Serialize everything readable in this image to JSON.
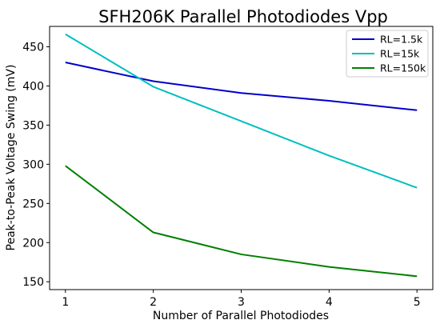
{
  "chart_data": {
    "type": "line",
    "title": "SFH206K Parallel Photodiodes Vpp",
    "xlabel": "Number of Parallel Photodiodes",
    "ylabel": "Peak-to-Peak Voltage Swing (mV)",
    "x": [
      1,
      2,
      3,
      4,
      5
    ],
    "xlim": [
      0.82,
      5.18
    ],
    "ylim": [
      140,
      476
    ],
    "xticks": [
      1,
      2,
      3,
      4,
      5
    ],
    "yticks": [
      150,
      200,
      250,
      300,
      350,
      400,
      450
    ],
    "grid": false,
    "legend_position": "top-right",
    "series": [
      {
        "name": "RL=1.5k",
        "color": "#0000cc",
        "values": [
          430,
          406,
          391,
          381,
          369
        ]
      },
      {
        "name": "RL=15k",
        "color": "#00bfbf",
        "values": [
          466,
          399,
          355,
          311,
          270
        ]
      },
      {
        "name": "RL=150k",
        "color": "#007f00",
        "values": [
          298,
          213,
          185,
          169,
          157
        ]
      }
    ]
  }
}
